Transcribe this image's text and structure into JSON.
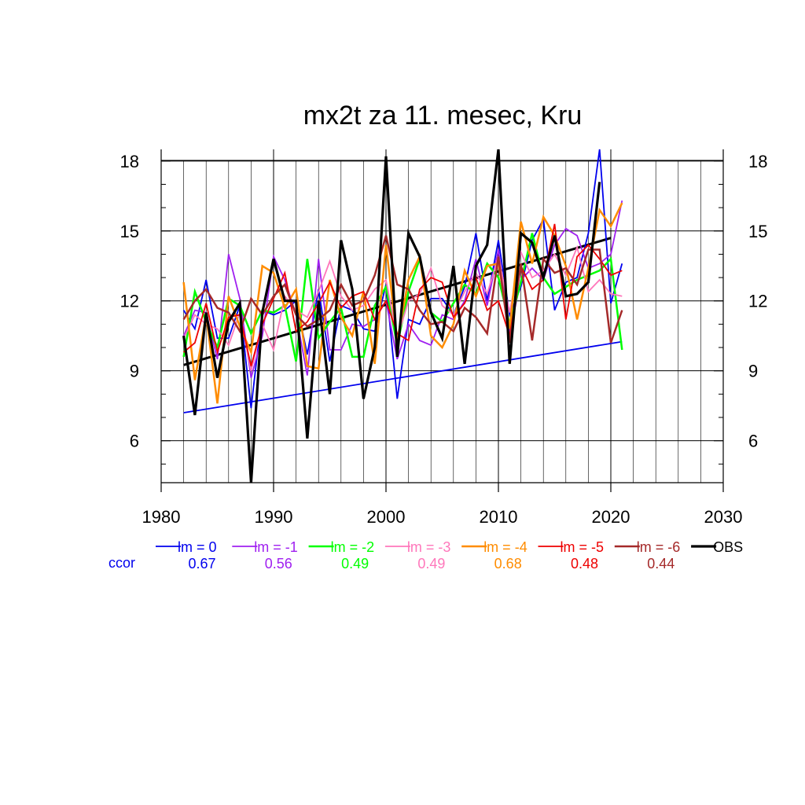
{
  "chart_data": {
    "type": "line",
    "title": "mx2t za 11. mesec, Kru",
    "xlabel": "",
    "ylabel": "",
    "xlim": [
      1980,
      2030
    ],
    "ylim": [
      4.2,
      18.5
    ],
    "xticks": [
      1980,
      1990,
      2000,
      2010,
      2020,
      2030
    ],
    "yticks": [
      6,
      9,
      12,
      15,
      18
    ],
    "grid": true,
    "legend_position": "bottom",
    "ccor_label": "ccor",
    "series": [
      {
        "name": "lm = 0",
        "color": "#0000ee",
        "stroke_width": 1.8,
        "ccor": "0.67",
        "x": [
          1982,
          1983,
          1984,
          1985,
          1986,
          1987,
          1988,
          1989,
          1990,
          1991,
          1992,
          1993,
          1994,
          1995,
          1996,
          1997,
          1998,
          1999,
          2000,
          2001,
          2002,
          2003,
          2004,
          2005,
          2006,
          2007,
          2008,
          2009,
          2010,
          2011,
          2012,
          2013,
          2014,
          2015,
          2016,
          2017,
          2018,
          2019,
          2020,
          2021
        ],
        "y": [
          11.6,
          10.8,
          12.9,
          10.4,
          10.4,
          11.8,
          7.4,
          11.6,
          11.4,
          11.6,
          12.0,
          9.7,
          12.5,
          9.4,
          11.8,
          11.6,
          10.8,
          10.7,
          12.7,
          7.8,
          11.2,
          11.0,
          12.1,
          12.1,
          11.4,
          12.6,
          14.9,
          12.0,
          14.6,
          11.4,
          12.6,
          14.6,
          15.5,
          11.6,
          12.8,
          13.0,
          14.9,
          18.5,
          11.9,
          13.6
        ]
      },
      {
        "name": "lm = -1",
        "color": "#a020f0",
        "stroke_width": 1.8,
        "ccor": "0.56",
        "x": [
          1982,
          1983,
          1984,
          1985,
          1986,
          1987,
          1988,
          1989,
          1990,
          1991,
          1992,
          1993,
          1994,
          1995,
          1996,
          1997,
          1998,
          1999,
          2000,
          2001,
          2002,
          2003,
          2004,
          2005,
          2006,
          2007,
          2008,
          2009,
          2010,
          2011,
          2012,
          2013,
          2014,
          2015,
          2016,
          2017,
          2018,
          2019,
          2020,
          2021
        ],
        "y": [
          10.5,
          11.6,
          11.5,
          9.5,
          14.0,
          12.1,
          8.7,
          10.5,
          13.9,
          12.9,
          11.4,
          8.8,
          13.8,
          9.9,
          9.9,
          11.0,
          10.9,
          11.2,
          12.0,
          9.5,
          11.0,
          10.3,
          10.1,
          11.4,
          11.2,
          12.0,
          13.8,
          11.8,
          14.2,
          10.6,
          12.9,
          13.4,
          12.9,
          14.4,
          15.1,
          14.8,
          13.4,
          13.6,
          14.0,
          16.3
        ]
      },
      {
        "name": "lm = -2",
        "color": "#00ff00",
        "stroke_width": 2.5,
        "ccor": "0.49",
        "x": [
          1982,
          1983,
          1984,
          1985,
          1986,
          1987,
          1988,
          1989,
          1990,
          1991,
          1992,
          1993,
          1994,
          1995,
          1996,
          1997,
          1998,
          1999,
          2000,
          2001,
          2002,
          2003,
          2004,
          2005,
          2006,
          2007,
          2008,
          2009,
          2010,
          2011,
          2012,
          2013,
          2014,
          2015,
          2016,
          2017,
          2018,
          2019,
          2020,
          2021
        ],
        "y": [
          9.6,
          12.4,
          11.1,
          10.0,
          12.1,
          11.8,
          10.6,
          11.6,
          11.5,
          11.8,
          9.4,
          13.8,
          10.4,
          11.1,
          11.7,
          9.6,
          9.6,
          11.8,
          12.6,
          10.1,
          12.4,
          13.8,
          11.5,
          11.1,
          11.9,
          12.7,
          12.3,
          13.6,
          13.0,
          11.0,
          12.8,
          14.9,
          13.0,
          12.3,
          12.6,
          12.9,
          13.1,
          13.3,
          13.8,
          9.9
        ]
      },
      {
        "name": "lm = -3",
        "color": "#ff77bb",
        "stroke_width": 1.8,
        "ccor": "0.49",
        "x": [
          1982,
          1983,
          1984,
          1985,
          1986,
          1987,
          1988,
          1989,
          1990,
          1991,
          1992,
          1993,
          1994,
          1995,
          1996,
          1997,
          1998,
          1999,
          2000,
          2001,
          2002,
          2003,
          2004,
          2005,
          2006,
          2007,
          2008,
          2009,
          2010,
          2011,
          2012,
          2013,
          2014,
          2015,
          2016,
          2017,
          2018,
          2019,
          2020,
          2021
        ],
        "y": [
          10.4,
          11.4,
          11.0,
          10.8,
          10.1,
          11.5,
          9.0,
          11.0,
          9.9,
          12.2,
          11.6,
          11.3,
          12.4,
          13.7,
          12.2,
          11.6,
          11.8,
          12.5,
          12.9,
          10.4,
          12.0,
          12.3,
          13.4,
          11.8,
          11.4,
          12.4,
          13.2,
          12.3,
          13.9,
          11.5,
          14.1,
          13.0,
          13.3,
          14.0,
          13.1,
          14.3,
          12.4,
          12.9,
          12.3,
          12.2
        ]
      },
      {
        "name": "lm = -4",
        "color": "#ff8c00",
        "stroke_width": 2.5,
        "ccor": "0.68",
        "x": [
          1982,
          1983,
          1984,
          1985,
          1986,
          1987,
          1988,
          1989,
          1990,
          1991,
          1992,
          1993,
          1994,
          1995,
          1996,
          1997,
          1998,
          1999,
          2000,
          2001,
          2002,
          2003,
          2004,
          2005,
          2006,
          2007,
          2008,
          2009,
          2010,
          2011,
          2012,
          2013,
          2014,
          2015,
          2016,
          2017,
          2018,
          2019,
          2020,
          2021
        ],
        "y": [
          12.8,
          8.6,
          11.4,
          7.6,
          12.2,
          10.9,
          9.8,
          13.5,
          13.2,
          11.7,
          12.5,
          9.2,
          9.1,
          12.9,
          11.3,
          10.5,
          12.4,
          9.3,
          14.4,
          10.3,
          12.9,
          13.9,
          10.5,
          10.0,
          11.0,
          13.3,
          12.2,
          13.5,
          13.6,
          10.8,
          15.4,
          13.6,
          15.6,
          14.8,
          13.5,
          11.2,
          13.4,
          15.9,
          15.2,
          16.2
        ]
      },
      {
        "name": "lm = -5",
        "color": "#ee0000",
        "stroke_width": 1.8,
        "ccor": "0.48",
        "x": [
          1982,
          1983,
          1984,
          1985,
          1986,
          1987,
          1988,
          1989,
          1990,
          1991,
          1992,
          1993,
          1994,
          1995,
          1996,
          1997,
          1998,
          1999,
          2000,
          2001,
          2002,
          2003,
          2004,
          2005,
          2006,
          2007,
          2008,
          2009,
          2010,
          2011,
          2012,
          2013,
          2014,
          2015,
          2016,
          2017,
          2018,
          2019,
          2020,
          2021
        ],
        "y": [
          9.8,
          10.2,
          11.9,
          9.8,
          11.3,
          11.4,
          9.2,
          11.0,
          12.1,
          13.2,
          10.7,
          11.1,
          11.9,
          12.8,
          11.7,
          12.2,
          12.4,
          11.2,
          12.0,
          10.6,
          10.3,
          12.5,
          13.0,
          12.8,
          11.3,
          11.9,
          13.0,
          11.6,
          12.0,
          10.5,
          13.5,
          12.5,
          12.9,
          15.3,
          11.2,
          13.9,
          14.4,
          13.8,
          13.1,
          13.3
        ]
      },
      {
        "name": "lm = -6",
        "color": "#a52a2a",
        "stroke_width": 2.5,
        "ccor": "0.44",
        "x": [
          1982,
          1983,
          1984,
          1985,
          1986,
          1987,
          1988,
          1989,
          1990,
          1991,
          1992,
          1993,
          1994,
          1995,
          1996,
          1997,
          1998,
          1999,
          2000,
          2001,
          2002,
          2003,
          2004,
          2005,
          2006,
          2007,
          2008,
          2009,
          2010,
          2011,
          2012,
          2013,
          2014,
          2015,
          2016,
          2017,
          2018,
          2019,
          2020,
          2021
        ],
        "y": [
          11.2,
          12.0,
          12.5,
          11.7,
          11.5,
          10.7,
          12.1,
          11.4,
          12.2,
          12.7,
          11.4,
          10.9,
          11.2,
          11.6,
          12.7,
          11.8,
          12.0,
          13.1,
          14.8,
          12.7,
          12.5,
          11.6,
          11.0,
          11.1,
          10.7,
          11.7,
          11.3,
          10.6,
          13.9,
          10.2,
          13.6,
          10.3,
          13.8,
          13.2,
          13.4,
          12.7,
          14.2,
          14.2,
          10.2,
          11.6
        ]
      },
      {
        "name": "OBS",
        "color": "#000000",
        "stroke_width": 3.2,
        "ccor": "",
        "x": [
          1982,
          1983,
          1984,
          1985,
          1986,
          1987,
          1988,
          1989,
          1990,
          1991,
          1992,
          1993,
          1994,
          1995,
          1996,
          1997,
          1998,
          1999,
          2000,
          2001,
          2002,
          2003,
          2004,
          2005,
          2006,
          2007,
          2008,
          2009,
          2010,
          2011,
          2012,
          2013,
          2014,
          2015,
          2016,
          2017,
          2018,
          2019
        ],
        "y": [
          10.5,
          7.1,
          11.5,
          8.7,
          11.1,
          11.9,
          4.2,
          11.5,
          13.8,
          12.0,
          12.0,
          6.1,
          12.0,
          8.0,
          14.6,
          12.5,
          7.8,
          10.0,
          18.2,
          9.6,
          14.9,
          13.9,
          11.5,
          10.4,
          13.5,
          9.3,
          13.5,
          14.4,
          18.5,
          9.3,
          14.9,
          14.5,
          13.0,
          14.8,
          12.2,
          12.3,
          12.8,
          17.1
        ]
      }
    ],
    "trendlines": [
      {
        "of": "lm = 0",
        "color": "#0000ee",
        "stroke_width": 1.8,
        "x": [
          1982,
          2021
        ],
        "y": [
          7.2,
          10.25
        ]
      },
      {
        "of": "OBS",
        "color": "#000000",
        "stroke_width": 3,
        "x": [
          1982,
          2020
        ],
        "y": [
          9.25,
          14.7
        ]
      }
    ]
  }
}
